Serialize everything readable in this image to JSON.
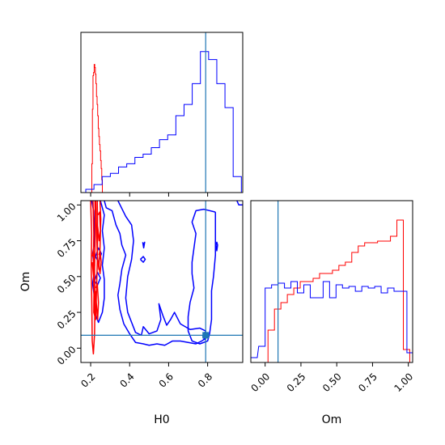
{
  "chart_data": [
    {
      "id": "hist-H0",
      "type": "histogram",
      "panel": "top-left",
      "xlim": [
        0.15,
        0.98
      ],
      "ylim": [
        0,
        1.0
      ],
      "x_ticks": [
        0.2,
        0.4,
        0.6,
        0.8
      ],
      "y_ticks": [],
      "truth_line_x": 0.79,
      "series": [
        {
          "color": "#ff0000",
          "steps": [
            [
              0.203,
              0.0
            ],
            [
              0.206,
              0.18
            ],
            [
              0.209,
              0.52
            ],
            [
              0.212,
              0.73
            ],
            [
              0.215,
              0.75
            ],
            [
              0.218,
              0.8
            ],
            [
              0.221,
              0.78
            ],
            [
              0.224,
              0.74
            ],
            [
              0.227,
              0.68
            ],
            [
              0.23,
              0.6
            ],
            [
              0.233,
              0.55
            ],
            [
              0.236,
              0.48
            ],
            [
              0.239,
              0.4
            ],
            [
              0.242,
              0.35
            ],
            [
              0.245,
              0.3
            ],
            [
              0.248,
              0.26
            ],
            [
              0.251,
              0.2
            ],
            [
              0.254,
              0.15
            ],
            [
              0.257,
              0.08
            ],
            [
              0.26,
              0.0
            ]
          ]
        },
        {
          "color": "#0000ff",
          "bins_left": [
            0.175,
            0.217,
            0.259,
            0.301,
            0.343,
            0.385,
            0.427,
            0.469,
            0.511,
            0.553,
            0.595,
            0.637,
            0.679,
            0.721,
            0.763,
            0.805,
            0.847,
            0.889,
            0.931
          ],
          "bin_width": 0.042,
          "values": [
            0.02,
            0.05,
            0.1,
            0.12,
            0.16,
            0.18,
            0.22,
            0.24,
            0.28,
            0.33,
            0.36,
            0.48,
            0.55,
            0.68,
            0.88,
            0.83,
            0.68,
            0.53,
            0.1
          ]
        }
      ]
    },
    {
      "id": "contour-H0-Om",
      "type": "contour",
      "panel": "bottom-left",
      "xlabel": "H0",
      "ylabel": "Om",
      "xlim": [
        0.15,
        0.98
      ],
      "ylim": [
        -0.1,
        1.03
      ],
      "x_ticks": [
        0.2,
        0.4,
        0.6,
        0.8
      ],
      "y_ticks": [
        0.0,
        0.25,
        0.5,
        0.75,
        1.0
      ],
      "x_tick_labels": [
        "0.2",
        "0.4",
        "0.6",
        "0.8"
      ],
      "y_tick_labels": [
        "0.00",
        "0.25",
        "0.50",
        "0.75",
        "1.00"
      ],
      "truth_point": [
        0.79,
        0.09
      ],
      "series": [
        {
          "color": "#0000ff",
          "contours": [
            [
              [
                0.27,
                1.03
              ],
              [
                0.28,
                0.98
              ],
              [
                0.31,
                0.96
              ],
              [
                0.33,
                0.86
              ],
              [
                0.35,
                0.8
              ],
              [
                0.36,
                0.72
              ],
              [
                0.38,
                0.65
              ],
              [
                0.36,
                0.55
              ],
              [
                0.35,
                0.45
              ],
              [
                0.34,
                0.37
              ],
              [
                0.35,
                0.27
              ],
              [
                0.37,
                0.17
              ],
              [
                0.4,
                0.1
              ],
              [
                0.43,
                0.04
              ],
              [
                0.47,
                0.03
              ],
              [
                0.5,
                0.02
              ],
              [
                0.54,
                0.03
              ],
              [
                0.58,
                0.02
              ],
              [
                0.62,
                0.05
              ],
              [
                0.66,
                0.05
              ],
              [
                0.7,
                0.04
              ],
              [
                0.74,
                0.03
              ],
              [
                0.77,
                0.05
              ],
              [
                0.79,
                0.07
              ],
              [
                0.79,
                0.12
              ],
              [
                0.76,
                0.14
              ],
              [
                0.71,
                0.13
              ],
              [
                0.66,
                0.17
              ],
              [
                0.63,
                0.25
              ],
              [
                0.61,
                0.2
              ],
              [
                0.59,
                0.16
              ],
              [
                0.57,
                0.23
              ],
              [
                0.55,
                0.31
              ],
              [
                0.56,
                0.2
              ],
              [
                0.54,
                0.12
              ],
              [
                0.5,
                0.1
              ],
              [
                0.47,
                0.15
              ],
              [
                0.46,
                0.09
              ],
              [
                0.43,
                0.11
              ],
              [
                0.41,
                0.18
              ],
              [
                0.39,
                0.25
              ],
              [
                0.38,
                0.35
              ],
              [
                0.39,
                0.5
              ],
              [
                0.41,
                0.62
              ],
              [
                0.42,
                0.75
              ],
              [
                0.41,
                0.86
              ],
              [
                0.38,
                0.92
              ],
              [
                0.34,
                1.03
              ]
            ],
            [
              [
                0.84,
                0.95
              ],
              [
                0.84,
                0.8
              ],
              [
                0.84,
                0.65
              ],
              [
                0.83,
                0.5
              ],
              [
                0.82,
                0.4
              ],
              [
                0.82,
                0.3
              ],
              [
                0.82,
                0.2
              ],
              [
                0.81,
                0.1
              ],
              [
                0.8,
                0.05
              ],
              [
                0.76,
                0.03
              ],
              [
                0.72,
                0.05
              ],
              [
                0.7,
                0.12
              ],
              [
                0.7,
                0.22
              ],
              [
                0.71,
                0.32
              ],
              [
                0.73,
                0.42
              ],
              [
                0.72,
                0.52
              ],
              [
                0.72,
                0.6
              ],
              [
                0.73,
                0.7
              ],
              [
                0.74,
                0.8
              ],
              [
                0.72,
                0.88
              ],
              [
                0.74,
                0.96
              ],
              [
                0.78,
                0.97
              ],
              [
                0.84,
                0.95
              ]
            ],
            [
              [
                0.95,
                1.03
              ],
              [
                0.96,
                1.0
              ],
              [
                0.98,
                1.0
              ]
            ],
            [
              [
                0.467,
                0.74
              ],
              [
                0.472,
                0.7
              ],
              [
                0.477,
                0.74
              ],
              [
                0.472,
                0.72
              ],
              [
                0.467,
                0.74
              ]
            ],
            [
              [
                0.455,
                0.62
              ],
              [
                0.47,
                0.6
              ],
              [
                0.48,
                0.62
              ],
              [
                0.47,
                0.64
              ],
              [
                0.455,
                0.62
              ]
            ],
            [
              [
                0.843,
                0.72
              ],
              [
                0.847,
                0.68
              ],
              [
                0.851,
                0.72
              ],
              [
                0.847,
                0.74
              ],
              [
                0.843,
                0.72
              ]
            ],
            [
              [
                0.775,
                0.08
              ],
              [
                0.785,
                0.06
              ],
              [
                0.795,
                0.08
              ],
              [
                0.785,
                0.11
              ],
              [
                0.775,
                0.08
              ]
            ],
            [
              [
                0.205,
                1.03
              ],
              [
                0.215,
                0.96
              ],
              [
                0.22,
                0.85
              ],
              [
                0.22,
                0.73
              ],
              [
                0.21,
                0.66
              ],
              [
                0.22,
                0.55
              ],
              [
                0.21,
                0.45
              ],
              [
                0.22,
                0.35
              ],
              [
                0.22,
                0.25
              ],
              [
                0.24,
                0.18
              ],
              [
                0.26,
                0.25
              ],
              [
                0.27,
                0.35
              ],
              [
                0.27,
                0.48
              ],
              [
                0.26,
                0.58
              ],
              [
                0.27,
                0.7
              ],
              [
                0.26,
                0.82
              ],
              [
                0.27,
                0.93
              ],
              [
                0.25,
                1.03
              ]
            ],
            [
              [
                0.225,
                0.64
              ],
              [
                0.24,
                0.7
              ],
              [
                0.255,
                0.66
              ],
              [
                0.24,
                0.6
              ],
              [
                0.225,
                0.64
              ]
            ],
            [
              [
                0.22,
                0.47
              ],
              [
                0.235,
                0.53
              ],
              [
                0.25,
                0.49
              ],
              [
                0.235,
                0.44
              ],
              [
                0.22,
                0.47
              ]
            ]
          ]
        },
        {
          "color": "#ff0000",
          "contours": [
            [
              [
                0.2,
                1.03
              ],
              [
                0.205,
                0.8
              ],
              [
                0.203,
                0.55
              ],
              [
                0.206,
                0.3
              ],
              [
                0.208,
                0.05
              ],
              [
                0.214,
                -0.04
              ],
              [
                0.22,
                0.1
              ],
              [
                0.222,
                0.3
              ],
              [
                0.22,
                0.55
              ],
              [
                0.224,
                0.8
              ],
              [
                0.222,
                1.03
              ]
            ],
            [
              [
                0.212,
                1.03
              ],
              [
                0.216,
                0.8
              ],
              [
                0.214,
                0.6
              ],
              [
                0.217,
                0.4
              ],
              [
                0.216,
                0.25
              ],
              [
                0.226,
                0.2
              ],
              [
                0.23,
                0.4
              ],
              [
                0.234,
                0.6
              ],
              [
                0.236,
                0.8
              ],
              [
                0.234,
                1.03
              ]
            ],
            [
              [
                0.226,
                1.03
              ],
              [
                0.23,
                0.85
              ],
              [
                0.234,
                0.65
              ],
              [
                0.242,
                0.55
              ],
              [
                0.248,
                0.7
              ],
              [
                0.252,
                0.9
              ],
              [
                0.248,
                1.03
              ]
            ],
            [
              [
                0.224,
                0.4
              ],
              [
                0.23,
                0.3
              ],
              [
                0.236,
                0.2
              ],
              [
                0.24,
                0.32
              ],
              [
                0.234,
                0.45
              ],
              [
                0.226,
                0.42
              ]
            ],
            [
              [
                0.236,
                0.85
              ],
              [
                0.244,
                0.75
              ],
              [
                0.25,
                0.82
              ],
              [
                0.246,
                0.95
              ],
              [
                0.238,
                0.93
              ]
            ],
            [
              [
                0.208,
                0.6
              ],
              [
                0.215,
                0.5
              ],
              [
                0.22,
                0.58
              ],
              [
                0.214,
                0.68
              ],
              [
                0.209,
                0.64
              ]
            ],
            [
              [
                0.24,
                0.6
              ],
              [
                0.248,
                0.52
              ],
              [
                0.254,
                0.6
              ],
              [
                0.248,
                0.68
              ],
              [
                0.242,
                0.65
              ]
            ]
          ]
        }
      ]
    },
    {
      "id": "hist-Om",
      "type": "histogram",
      "panel": "bottom-right",
      "xlabel": "Om",
      "xlim": [
        -0.1,
        1.03
      ],
      "ylim": [
        0,
        1.0
      ],
      "x_ticks": [
        0.0,
        0.25,
        0.5,
        0.75,
        1.0
      ],
      "x_tick_labels": [
        "0.00",
        "0.25",
        "0.50",
        "0.75",
        "1.00"
      ],
      "truth_line_x": 0.09,
      "series": [
        {
          "color": "#ff0000",
          "bins_left": [
            -0.025,
            0.02,
            0.065,
            0.11,
            0.155,
            0.2,
            0.245,
            0.29,
            0.335,
            0.38,
            0.425,
            0.47,
            0.515,
            0.56,
            0.605,
            0.65,
            0.695,
            0.74,
            0.785,
            0.83,
            0.875,
            0.92,
            0.965
          ],
          "bin_width": 0.045,
          "values": [
            0.0,
            0.2,
            0.33,
            0.37,
            0.42,
            0.46,
            0.5,
            0.5,
            0.52,
            0.55,
            0.55,
            0.57,
            0.6,
            0.62,
            0.68,
            0.72,
            0.74,
            0.74,
            0.75,
            0.75,
            0.78,
            0.88,
            0.08
          ]
        },
        {
          "color": "#0000ff",
          "bins_left": [
            -0.1,
            -0.045,
            0.0,
            0.045,
            0.09,
            0.135,
            0.18,
            0.225,
            0.27,
            0.315,
            0.36,
            0.405,
            0.45,
            0.495,
            0.54,
            0.585,
            0.63,
            0.675,
            0.72,
            0.765,
            0.81,
            0.855,
            0.9,
            0.945,
            0.99
          ],
          "bin_width": 0.045,
          "values": [
            0.03,
            0.1,
            0.46,
            0.48,
            0.49,
            0.46,
            0.5,
            0.43,
            0.48,
            0.4,
            0.4,
            0.5,
            0.4,
            0.48,
            0.46,
            0.47,
            0.44,
            0.47,
            0.46,
            0.47,
            0.43,
            0.46,
            0.44,
            0.44,
            0.06
          ]
        }
      ]
    }
  ]
}
